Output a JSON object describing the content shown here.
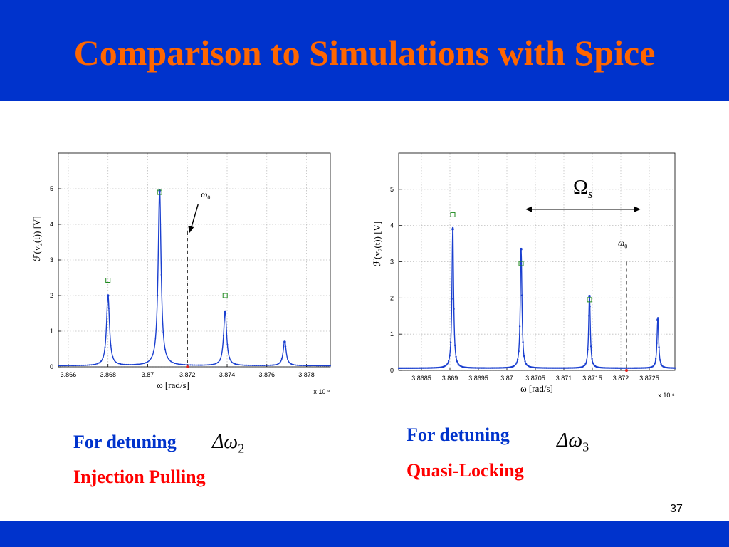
{
  "slide": {
    "title": "Comparison to Simulations with Spice",
    "page_number": "37",
    "colors": {
      "band": "#0033cc",
      "title": "#ff6600",
      "blue_text": "#0033cc",
      "red_text": "#ff0000"
    }
  },
  "captions": {
    "left_detuning": "For detuning",
    "left_delta_symbol": "Δω",
    "left_delta_sub": "2",
    "left_effect": "Injection Pulling",
    "right_detuning": "For detuning",
    "right_delta_symbol": "Δω",
    "right_delta_sub": "3",
    "right_effect": "Quasi-Locking"
  },
  "chart_data": [
    {
      "type": "line",
      "ylabel": "ℱ(v₂(t)) [V]",
      "xlabel": "ω [rad/s]",
      "x_multiplier": "x 10 ⁸",
      "xlim": [
        3.8655,
        3.8792
      ],
      "ylim": [
        0,
        6
      ],
      "xticks": [
        3.866,
        3.868,
        3.87,
        3.872,
        3.874,
        3.876,
        3.878
      ],
      "xtick_labels": [
        "3.866",
        "3.868",
        "3.87",
        "3.872",
        "3.874",
        "3.876",
        "3.878"
      ],
      "yticks": [
        0,
        1,
        2,
        3,
        4,
        5
      ],
      "grid": true,
      "series_color": "#1a3fcf",
      "peaks": [
        {
          "x": 3.868,
          "y": 2.0
        },
        {
          "x": 3.8706,
          "y": 4.95
        },
        {
          "x": 3.8739,
          "y": 1.55
        },
        {
          "x": 3.8769,
          "y": 0.7
        }
      ],
      "markers": [
        {
          "x": 3.868,
          "y": 2.43
        },
        {
          "x": 3.8706,
          "y": 4.9
        },
        {
          "x": 3.8739,
          "y": 2.0
        }
      ],
      "omega0": {
        "x": 3.872,
        "y_top": 3.8,
        "label": "ω",
        "sub": "0"
      }
    },
    {
      "type": "line",
      "ylabel": "ℱ(v₂(t)) [V]",
      "xlabel": "ω [rad/s]",
      "x_multiplier": "x 10 ⁸",
      "xlim": [
        3.8681,
        3.87295
      ],
      "ylim": [
        0,
        6
      ],
      "xticks": [
        3.8685,
        3.869,
        3.8695,
        3.87,
        3.8705,
        3.871,
        3.8715,
        3.872,
        3.8725
      ],
      "xtick_labels": [
        "3.8685",
        "3.869",
        "3.8695",
        "3.87",
        "3.8705",
        "3.871",
        "3.8715",
        "3.872",
        "3.8725"
      ],
      "yticks": [
        0,
        1,
        2,
        3,
        4,
        5
      ],
      "grid": true,
      "series_color": "#1a3fcf",
      "peaks": [
        {
          "x": 3.86905,
          "y": 3.9
        },
        {
          "x": 3.87025,
          "y": 3.35
        },
        {
          "x": 3.87145,
          "y": 2.05
        },
        {
          "x": 3.87265,
          "y": 1.4
        }
      ],
      "markers": [
        {
          "x": 3.86905,
          "y": 4.3
        },
        {
          "x": 3.87025,
          "y": 2.95
        },
        {
          "x": 3.87145,
          "y": 1.95
        }
      ],
      "omega0": {
        "x": 3.8721,
        "y_top": 3.0,
        "label": "ω",
        "sub": "0"
      },
      "omega_s": {
        "label": "Ω",
        "sub": "s"
      }
    }
  ]
}
